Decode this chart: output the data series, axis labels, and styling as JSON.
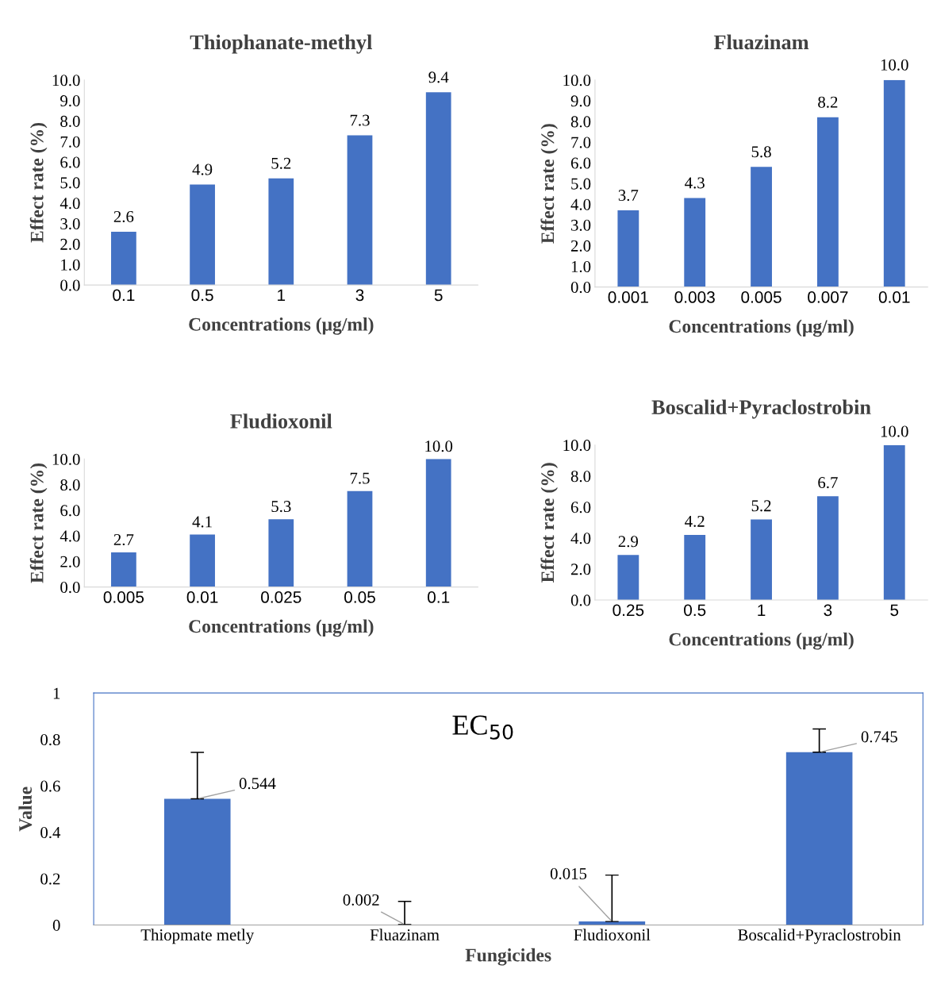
{
  "chart_data": [
    {
      "type": "bar",
      "title": "Thiophanate-methyl",
      "xlabel": "Concentrations (μg/ml)",
      "ylabel": "Effect rate (%)",
      "categories": [
        "0.1",
        "0.5",
        "1",
        "3",
        "5"
      ],
      "values": [
        2.6,
        4.9,
        5.2,
        7.3,
        9.4
      ],
      "color": "#4472c4",
      "value_labels": [
        "2.6",
        "4.9",
        "5.2",
        "7.3",
        "9.4"
      ],
      "ylim": [
        0,
        10
      ],
      "yticks": [
        {
          "value": 0,
          "label": "0.0"
        },
        {
          "value": 1,
          "label": "1.0"
        },
        {
          "value": 2,
          "label": "2.0"
        },
        {
          "value": 3,
          "label": "3.0"
        },
        {
          "value": 4,
          "label": "4.0"
        },
        {
          "value": 5,
          "label": "5.0"
        },
        {
          "value": 6,
          "label": "6.0"
        },
        {
          "value": 7,
          "label": "7.0"
        },
        {
          "value": 8,
          "label": "8.0"
        },
        {
          "value": 9,
          "label": "9.0"
        },
        {
          "value": 10,
          "label": "10.0"
        }
      ]
    },
    {
      "type": "bar",
      "title": "Fluazinam",
      "xlabel": "Concentrations (μg/ml)",
      "ylabel": "Effect rate (%)",
      "categories": [
        "0.001",
        "0.003",
        "0.005",
        "0.007",
        "0.01"
      ],
      "values": [
        3.7,
        4.3,
        5.8,
        8.2,
        10.0
      ],
      "color": "#4472c4",
      "value_labels": [
        "3.7",
        "4.3",
        "5.8",
        "8.2",
        "10.0"
      ],
      "ylim": [
        0,
        10
      ],
      "yticks": [
        {
          "value": 0,
          "label": "0.0"
        },
        {
          "value": 1,
          "label": "1.0"
        },
        {
          "value": 2,
          "label": "2.0"
        },
        {
          "value": 3,
          "label": "3.0"
        },
        {
          "value": 4,
          "label": "4.0"
        },
        {
          "value": 5,
          "label": "5.0"
        },
        {
          "value": 6,
          "label": "6.0"
        },
        {
          "value": 7,
          "label": "7.0"
        },
        {
          "value": 8,
          "label": "8.0"
        },
        {
          "value": 9,
          "label": "9.0"
        },
        {
          "value": 10,
          "label": "10.0"
        }
      ]
    },
    {
      "type": "bar",
      "title": "Fludioxonil",
      "xlabel": "Concentrations (μg/ml)",
      "ylabel": "Effect rate (%)",
      "categories": [
        "0.005",
        "0.01",
        "0.025",
        "0.05",
        "0.1"
      ],
      "values": [
        2.7,
        4.1,
        5.3,
        7.5,
        10.0
      ],
      "color": "#4472c4",
      "value_labels": [
        "2.7",
        "4.1",
        "5.3",
        "7.5",
        "10.0"
      ],
      "ylim": [
        0,
        10
      ],
      "yticks": [
        {
          "value": 0,
          "label": "0.0"
        },
        {
          "value": 2,
          "label": "2.0"
        },
        {
          "value": 4,
          "label": "4.0"
        },
        {
          "value": 6,
          "label": "6.0"
        },
        {
          "value": 8,
          "label": "8.0"
        },
        {
          "value": 10,
          "label": "10.0"
        }
      ]
    },
    {
      "type": "bar",
      "title": "Boscalid+Pyraclostrobin",
      "xlabel": "Concentrations (μg/ml)",
      "ylabel": "Effect rate (%)",
      "categories": [
        "0.25",
        "0.5",
        "1",
        "3",
        "5"
      ],
      "values": [
        2.9,
        4.2,
        5.2,
        6.7,
        10.0
      ],
      "color": "#4472c4",
      "value_labels": [
        "2.9",
        "4.2",
        "5.2",
        "6.7",
        "10.0"
      ],
      "ylim": [
        0,
        10
      ],
      "yticks": [
        {
          "value": 0,
          "label": "0.0"
        },
        {
          "value": 2,
          "label": "2.0"
        },
        {
          "value": 4,
          "label": "4.0"
        },
        {
          "value": 6,
          "label": "6.0"
        },
        {
          "value": 8,
          "label": "8.0"
        },
        {
          "value": 10,
          "label": "10.0"
        }
      ]
    },
    {
      "type": "bar",
      "title": "EC$_{50}$",
      "xlabel": "Fungicides",
      "ylabel": "Value",
      "categories": [
        "Thiopmate metly",
        "Fluazinam",
        "Fludioxonil",
        "Boscalid+Pyraclostrobin"
      ],
      "values": [
        0.544,
        0.002,
        0.015,
        0.745
      ],
      "errors": [
        [
          0.544,
          0.744
        ],
        [
          0.002,
          0.102
        ],
        [
          0.015,
          0.215
        ],
        [
          0.745,
          0.845
        ]
      ],
      "color": "#4472c4",
      "value_labels": [
        "0.544",
        "0.002",
        "0.015",
        "0.745"
      ],
      "ylim": [
        0,
        1
      ],
      "yticks": [
        0,
        0.2,
        0.4,
        0.6,
        0.8,
        1
      ]
    }
  ]
}
